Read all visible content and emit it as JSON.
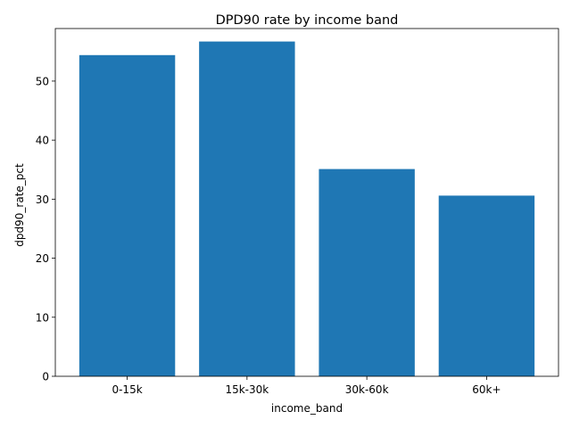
{
  "chart_data": {
    "type": "bar",
    "title": "DPD90 rate by income band",
    "xlabel": "income_band",
    "ylabel": "dpd90_rate_pct",
    "categories": [
      "0-15k",
      "15k-30k",
      "30k-60k",
      "60k+"
    ],
    "values": [
      54.4,
      56.7,
      35.1,
      30.6
    ],
    "ylim": [
      0,
      58.9
    ],
    "yticks": [
      0,
      10,
      20,
      30,
      40,
      50
    ],
    "grid": false,
    "bar_color": "#1f77b4"
  }
}
